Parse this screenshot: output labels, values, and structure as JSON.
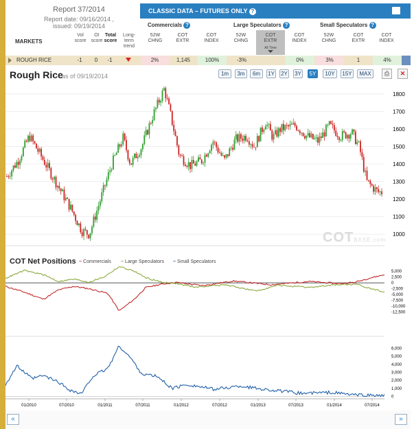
{
  "report": {
    "title": "Report 37/2014",
    "report_date": "Report date: 09/16/2014 ,",
    "issued": "issued: 09/19/2014"
  },
  "table": {
    "markets_label": "MARKETS",
    "vol_score": "Vol\nscore",
    "oi_score": "OI\nscore",
    "total_score": "Total\nscore",
    "trend": "Long-\nterm\ntrend",
    "band_title": "CLASSIC DATA – FUTURES ONLY",
    "groups": [
      "Commercials",
      "Large Speculators",
      "Small Speculators"
    ],
    "sub_52w": "52W\nCHNG",
    "sub_extr": "COT\nEXTR",
    "sub_index": "COT\nINDEX",
    "all_time": "All Time",
    "row": {
      "market": "ROUGH RICE",
      "vol": "-1",
      "oi": "0",
      "total": "-1",
      "comm_chng": "2%",
      "comm_extr": "1,145",
      "comm_index": "100%",
      "large_chng": "-3%",
      "large_extr": "",
      "large_index": "0%",
      "small_chng": "3%",
      "small_extr": "1",
      "small_index": "4%"
    }
  },
  "chart_header": {
    "title": "Rough Rice",
    "asof": "as of 09/19/2014",
    "ranges": [
      "1m",
      "3m",
      "6m",
      "1Y",
      "2Y",
      "3Y",
      "5Y",
      "10Y",
      "15Y",
      "MAX"
    ],
    "active_range": "5Y"
  },
  "watermark": {
    "main": "COT",
    "suffix": "BASE.com"
  },
  "cot": {
    "title": "COT Net Positions",
    "legend": [
      "Commercials",
      "Large Speculators",
      "Small Speculators"
    ]
  },
  "colors": {
    "up": "#2e9d2e",
    "down": "#cc2222",
    "commercials": "#c0282a",
    "large": "#8aa83a",
    "small": "#1f5fa8",
    "accent": "#2a7fc0"
  },
  "chart_data": [
    {
      "type": "candlestick",
      "title": "Rough Rice",
      "y_ticks": [
        "1800",
        "1700",
        "1600",
        "1500",
        "1400",
        "1300",
        "1200",
        "1100",
        "1000"
      ],
      "ylim": [
        950,
        1850
      ],
      "keypoints": [
        [
          0,
          1330
        ],
        [
          0.03,
          1420
        ],
        [
          0.06,
          1560
        ],
        [
          0.09,
          1450
        ],
        [
          0.13,
          1300
        ],
        [
          0.17,
          1150
        ],
        [
          0.2,
          1020
        ],
        [
          0.22,
          1000
        ],
        [
          0.25,
          1200
        ],
        [
          0.28,
          1400
        ],
        [
          0.31,
          1550
        ],
        [
          0.33,
          1400
        ],
        [
          0.36,
          1500
        ],
        [
          0.39,
          1680
        ],
        [
          0.41,
          1780
        ],
        [
          0.42,
          1830
        ],
        [
          0.44,
          1650
        ],
        [
          0.46,
          1450
        ],
        [
          0.49,
          1390
        ],
        [
          0.52,
          1420
        ],
        [
          0.55,
          1530
        ],
        [
          0.58,
          1420
        ],
        [
          0.61,
          1540
        ],
        [
          0.64,
          1560
        ],
        [
          0.66,
          1500
        ],
        [
          0.69,
          1640
        ],
        [
          0.71,
          1550
        ],
        [
          0.73,
          1600
        ],
        [
          0.77,
          1620
        ],
        [
          0.8,
          1560
        ],
        [
          0.83,
          1530
        ],
        [
          0.86,
          1620
        ],
        [
          0.89,
          1560
        ],
        [
          0.92,
          1580
        ],
        [
          0.94,
          1500
        ],
        [
          0.96,
          1300
        ],
        [
          0.99,
          1240
        ]
      ]
    },
    {
      "type": "line",
      "title": "COT Net Positions",
      "y_ticks": [
        "5,000",
        "2,500",
        "0",
        "-2,500",
        "-5,000",
        "-7,500",
        "-10,000",
        "-12,500"
      ],
      "ylim": [
        -13500,
        6500
      ],
      "series": [
        {
          "name": "Commercials",
          "keypoints": [
            [
              0,
              -1500
            ],
            [
              0.05,
              -4000
            ],
            [
              0.1,
              -7000
            ],
            [
              0.14,
              -3000
            ],
            [
              0.18,
              -1500
            ],
            [
              0.22,
              -2500
            ],
            [
              0.27,
              -4500
            ],
            [
              0.3,
              -12000
            ],
            [
              0.34,
              -7000
            ],
            [
              0.37,
              -2000
            ],
            [
              0.41,
              -600
            ],
            [
              0.45,
              200
            ],
            [
              0.52,
              -1200
            ],
            [
              0.6,
              800
            ],
            [
              0.7,
              -800
            ],
            [
              0.8,
              600
            ],
            [
              0.88,
              -300
            ],
            [
              0.92,
              200
            ],
            [
              0.96,
              2000
            ],
            [
              1,
              3500
            ]
          ]
        },
        {
          "name": "Large Speculators",
          "keypoints": [
            [
              0,
              2000
            ],
            [
              0.05,
              5300
            ],
            [
              0.1,
              3500
            ],
            [
              0.14,
              600
            ],
            [
              0.18,
              1600
            ],
            [
              0.22,
              300
            ],
            [
              0.26,
              2500
            ],
            [
              0.3,
              7000
            ],
            [
              0.34,
              5000
            ],
            [
              0.37,
              2200
            ],
            [
              0.41,
              400
            ],
            [
              0.45,
              -300
            ],
            [
              0.5,
              -1800
            ],
            [
              0.58,
              -800
            ],
            [
              0.66,
              -3500
            ],
            [
              0.72,
              -1000
            ],
            [
              0.8,
              -2000
            ],
            [
              0.88,
              -700
            ],
            [
              0.93,
              -800
            ],
            [
              0.96,
              -2300
            ],
            [
              1,
              -3800
            ]
          ]
        }
      ],
      "x_ticks": [
        "01/2010",
        "07/2010",
        "01/2011",
        "07/2011",
        "01/2012",
        "07/2012",
        "01/2013",
        "07/2013",
        "01/2014",
        "07/2014"
      ]
    },
    {
      "type": "line",
      "title": "Small Speculators",
      "y_ticks": [
        "6,000",
        "5,000",
        "4,000",
        "3,000",
        "2,000",
        "1,000",
        "0"
      ],
      "ylim": [
        -200,
        6800
      ],
      "series": [
        {
          "name": "Small Speculators",
          "keypoints": [
            [
              0,
              1500
            ],
            [
              0.03,
              3800
            ],
            [
              0.07,
              2200
            ],
            [
              0.1,
              2600
            ],
            [
              0.14,
              1800
            ],
            [
              0.17,
              800
            ],
            [
              0.2,
              300
            ],
            [
              0.23,
              2500
            ],
            [
              0.27,
              3500
            ],
            [
              0.3,
              6300
            ],
            [
              0.33,
              4800
            ],
            [
              0.36,
              2800
            ],
            [
              0.4,
              2500
            ],
            [
              0.44,
              1000
            ],
            [
              0.48,
              1500
            ],
            [
              0.55,
              900
            ],
            [
              0.62,
              1300
            ],
            [
              0.7,
              800
            ],
            [
              0.78,
              400
            ],
            [
              0.86,
              500
            ],
            [
              0.92,
              200
            ],
            [
              1,
              100
            ]
          ]
        }
      ],
      "x_ticks": [
        "01/2010",
        "07/2010",
        "01/2011",
        "07/2011",
        "01/2012",
        "07/2012",
        "01/2013",
        "07/2013",
        "01/2014",
        "07/2014"
      ]
    }
  ]
}
